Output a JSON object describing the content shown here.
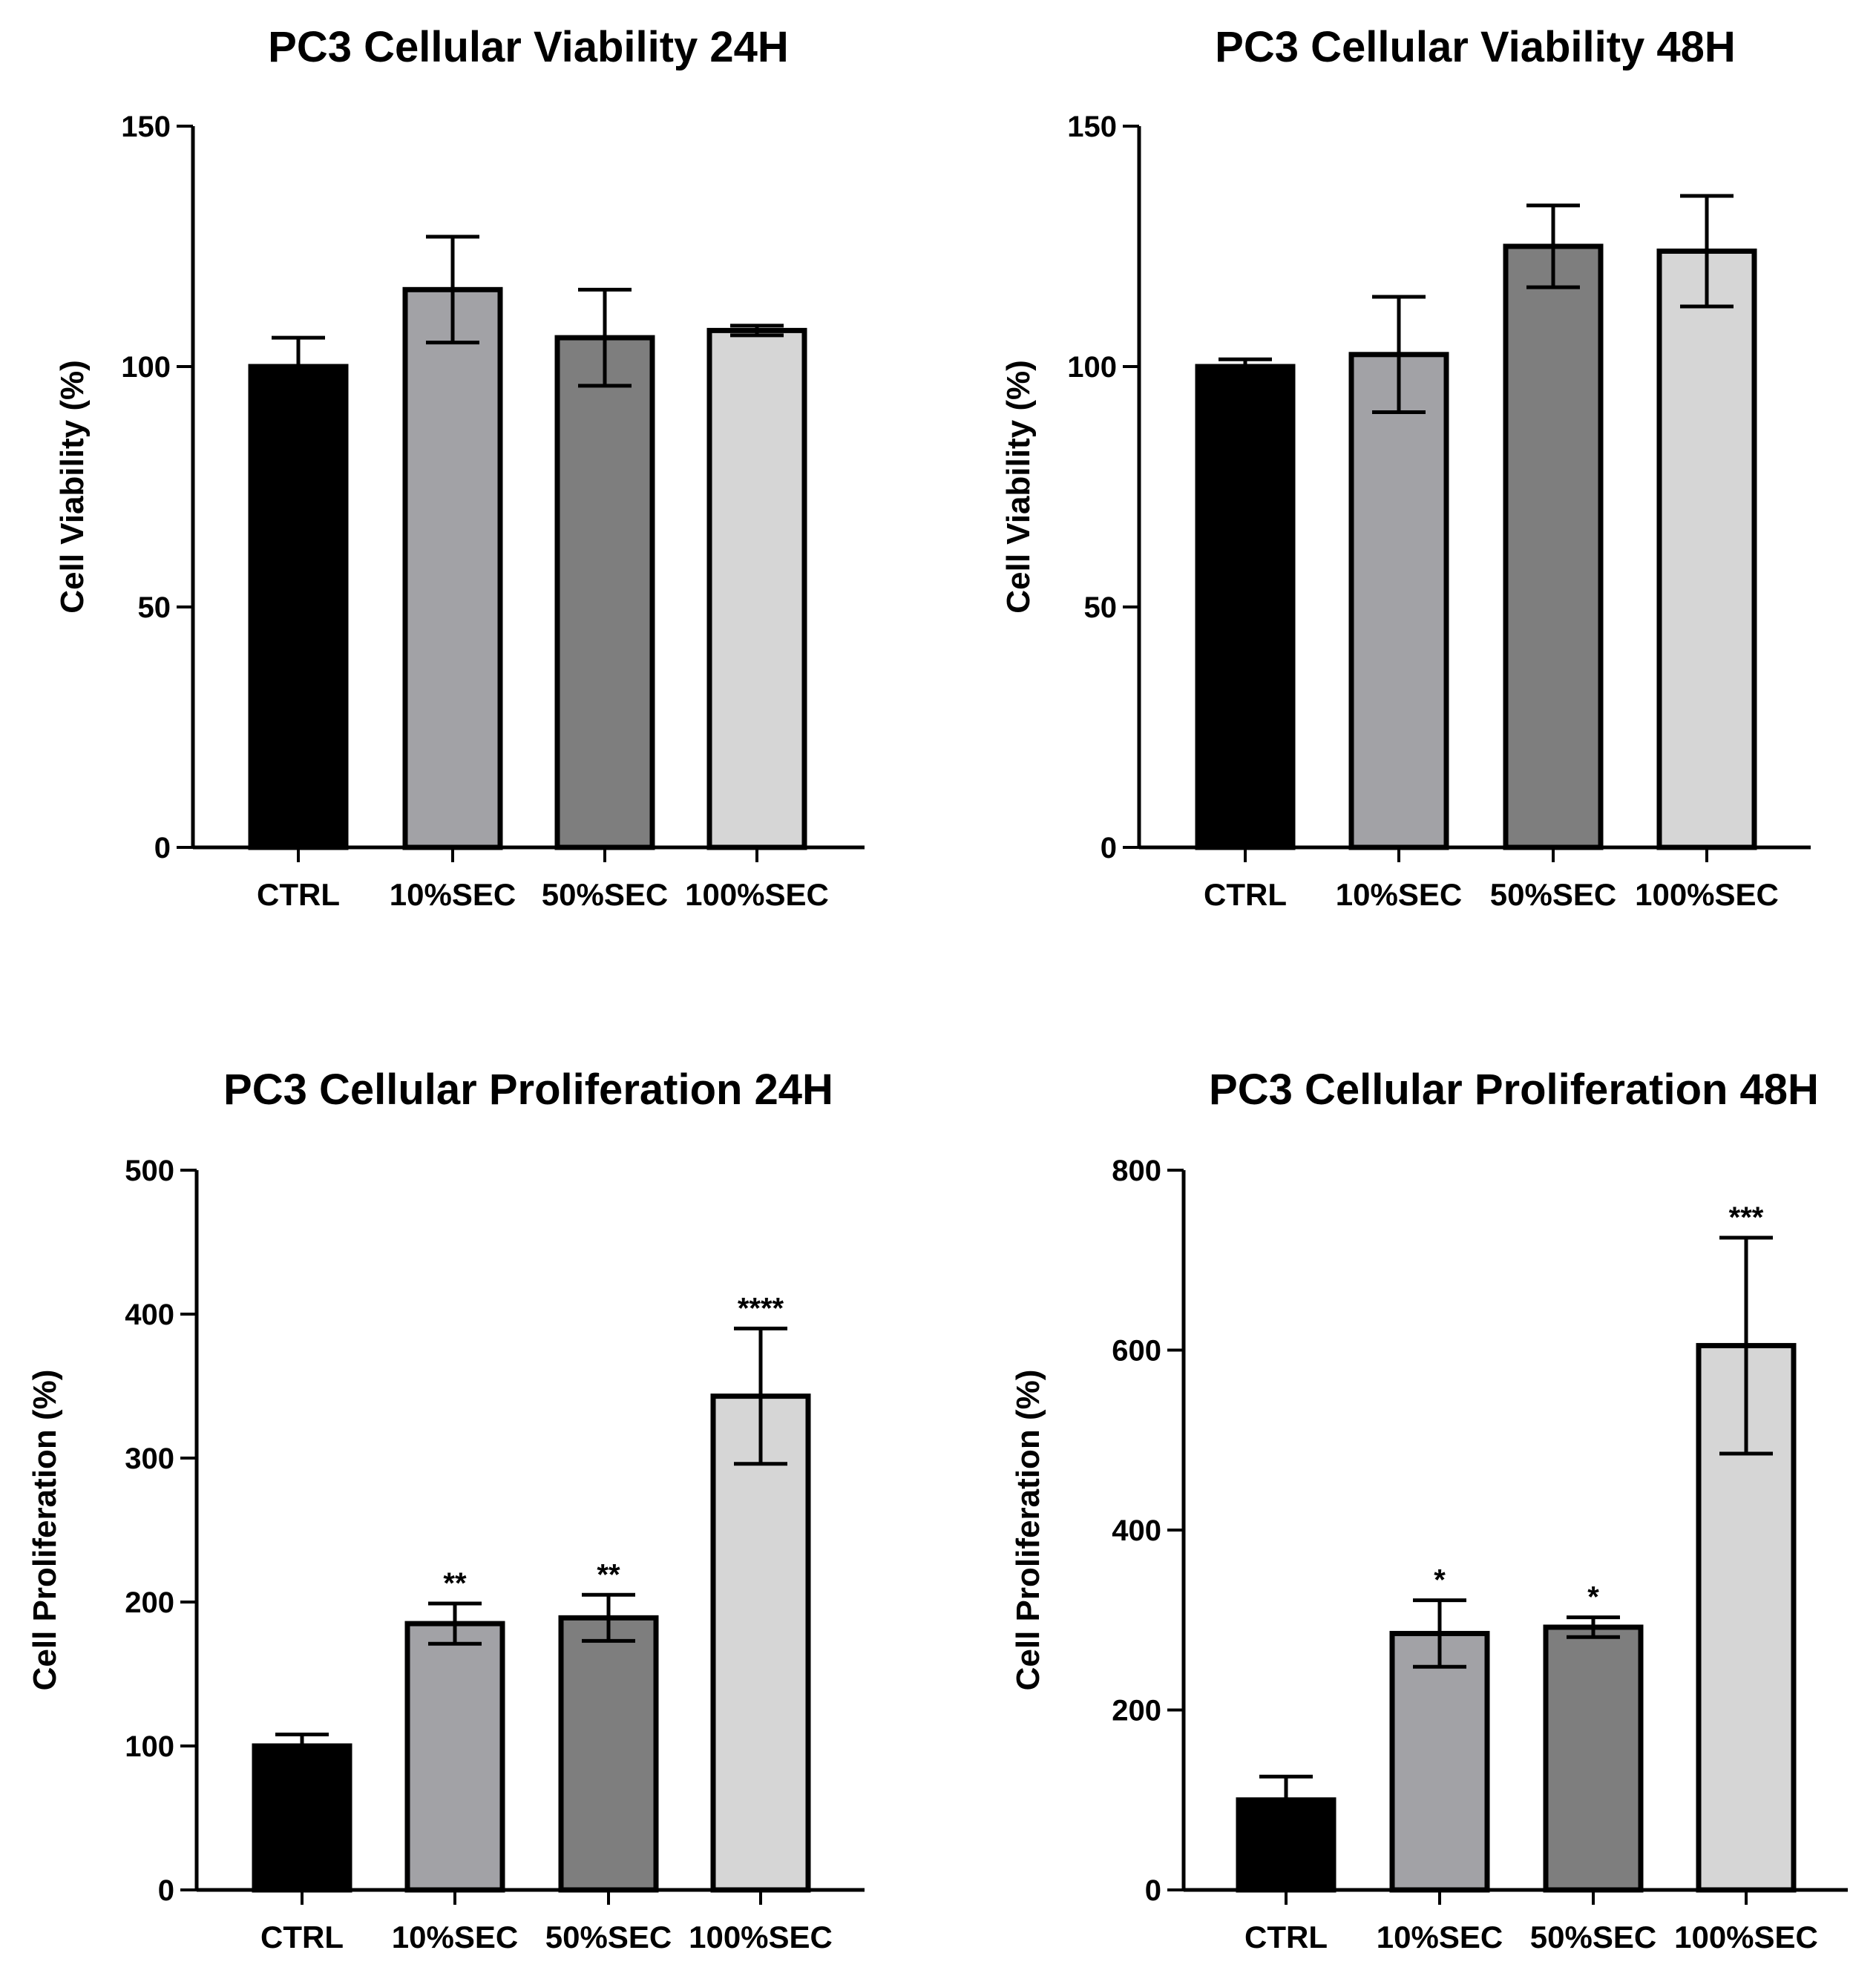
{
  "chart_data": [
    {
      "type": "bar",
      "title": "PC3 Cellular Viability 24H",
      "xlabel": "",
      "ylabel": "Cell Viability (%)",
      "ylim": [
        0,
        150
      ],
      "yticks": [
        0,
        50,
        100,
        150
      ],
      "categories": [
        "CTRL",
        "10%SEC",
        "50%SEC",
        "100%SEC"
      ],
      "values": [
        100,
        116,
        106,
        107.5
      ],
      "errors": [
        6,
        11,
        10,
        1
      ],
      "significance": [
        "",
        "",
        "",
        ""
      ],
      "colors": [
        "#000000",
        "#a2a2a6",
        "#7e7e7e",
        "#d6d6d6"
      ]
    },
    {
      "type": "bar",
      "title": "PC3 Cellular Viability 48H",
      "xlabel": "",
      "ylabel": "Cell Viability (%)",
      "ylim": [
        0,
        150
      ],
      "yticks": [
        0,
        50,
        100,
        150
      ],
      "categories": [
        "CTRL",
        "10%SEC",
        "50%SEC",
        "100%SEC"
      ],
      "values": [
        100,
        102.5,
        125,
        124
      ],
      "errors": [
        1.5,
        12,
        8.5,
        11.5
      ],
      "significance": [
        "",
        "",
        "",
        ""
      ],
      "colors": [
        "#000000",
        "#a2a2a6",
        "#7e7e7e",
        "#d6d6d6"
      ]
    },
    {
      "type": "bar",
      "title": "PC3 Cellular Proliferation 24H",
      "xlabel": "",
      "ylabel": "Cell Proliferation (%)",
      "ylim": [
        0,
        500
      ],
      "yticks": [
        0,
        100,
        200,
        300,
        400,
        500
      ],
      "categories": [
        "CTRL",
        "10%SEC",
        "50%SEC",
        "100%SEC"
      ],
      "values": [
        100,
        185,
        189,
        343
      ],
      "errors": [
        8,
        14,
        16,
        47
      ],
      "significance": [
        "",
        "**",
        "**",
        "****"
      ],
      "colors": [
        "#000000",
        "#a2a2a6",
        "#7e7e7e",
        "#d6d6d6"
      ]
    },
    {
      "type": "bar",
      "title": "PC3 Cellular Proliferation  48H",
      "xlabel": "",
      "ylabel": "Cell Proliferation (%)",
      "ylim": [
        0,
        800
      ],
      "yticks": [
        0,
        200,
        400,
        600,
        800
      ],
      "categories": [
        "CTRL",
        "10%SEC",
        "50%SEC",
        "100%SEC"
      ],
      "values": [
        100,
        285,
        292,
        605
      ],
      "errors": [
        26,
        37,
        11,
        120
      ],
      "significance": [
        "",
        "*",
        "*",
        "***"
      ],
      "colors": [
        "#000000",
        "#a2a2a6",
        "#7e7e7e",
        "#d6d6d6"
      ]
    }
  ]
}
